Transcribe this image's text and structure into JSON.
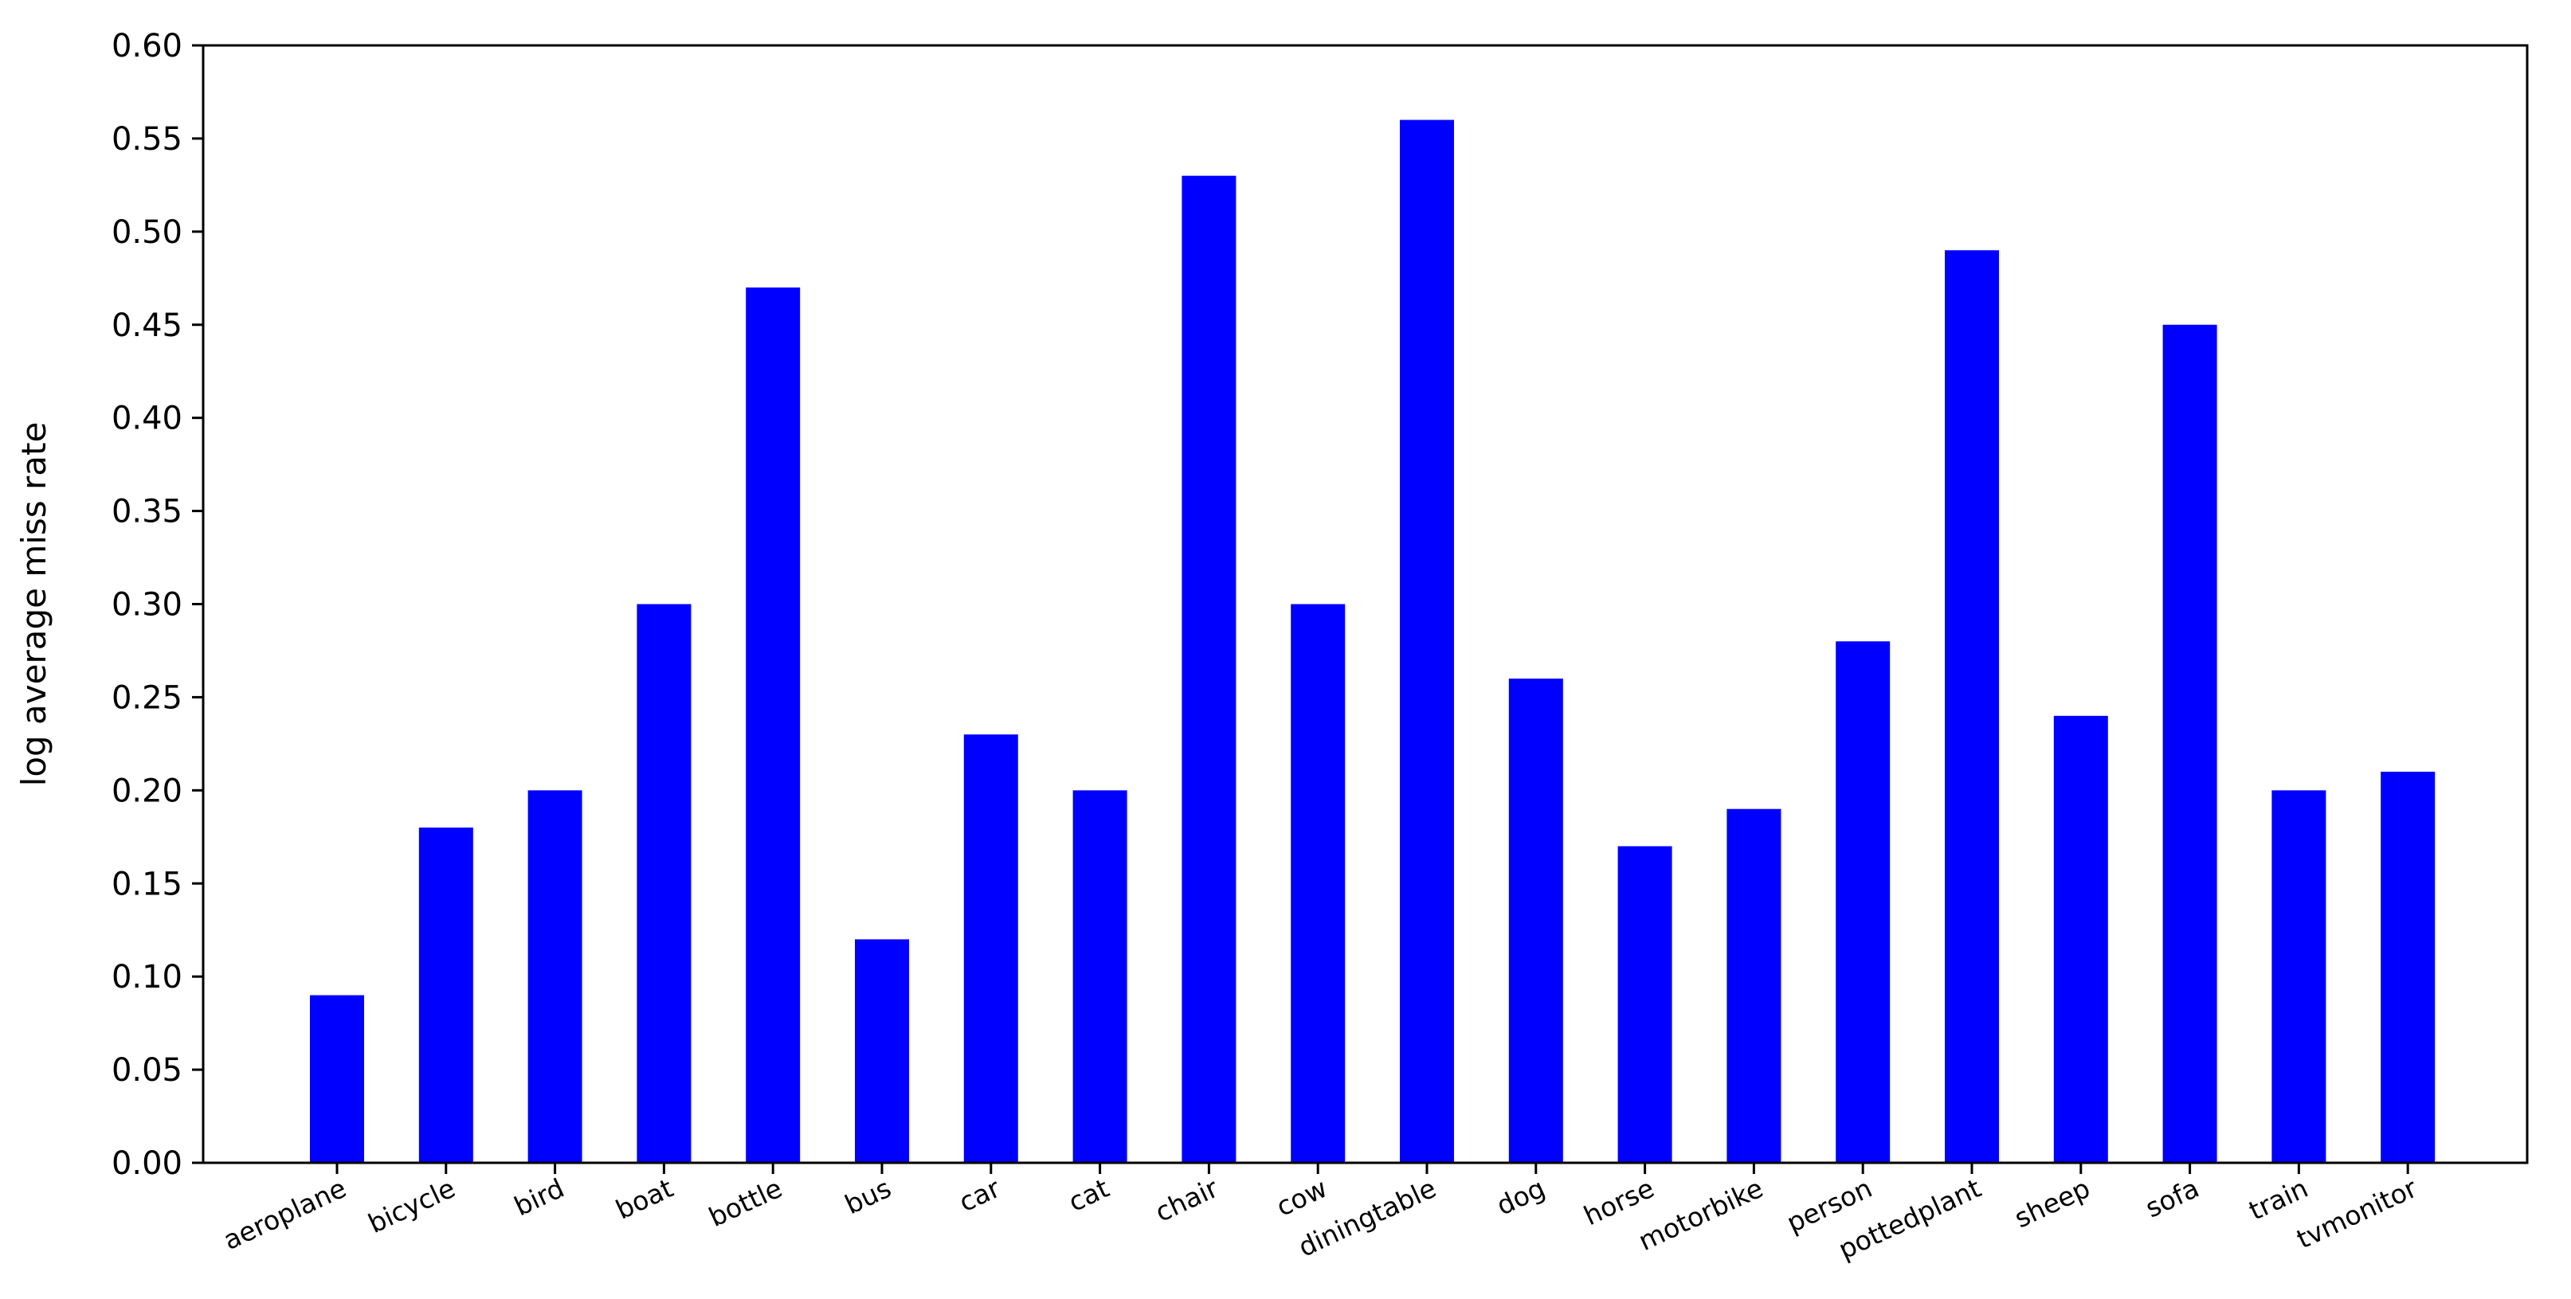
{
  "chart_data": {
    "type": "bar",
    "title": "",
    "xlabel": "",
    "ylabel": "log average miss rate",
    "categories": [
      "aeroplane",
      "bicycle",
      "bird",
      "boat",
      "bottle",
      "bus",
      "car",
      "cat",
      "chair",
      "cow",
      "diningtable",
      "dog",
      "horse",
      "motorbike",
      "person",
      "pottedplant",
      "sheep",
      "sofa",
      "train",
      "tvmonitor"
    ],
    "values": [
      0.09,
      0.18,
      0.2,
      0.3,
      0.47,
      0.12,
      0.23,
      0.2,
      0.53,
      0.3,
      0.56,
      0.26,
      0.17,
      0.19,
      0.28,
      0.49,
      0.24,
      0.45,
      0.2,
      0.21
    ],
    "ylim": [
      0.0,
      0.6
    ],
    "yticks": [
      "0.00",
      "0.05",
      "0.10",
      "0.15",
      "0.20",
      "0.25",
      "0.30",
      "0.35",
      "0.40",
      "0.45",
      "0.50",
      "0.55",
      "0.60"
    ],
    "bar_color": "#0000ff",
    "grid": false,
    "legend": "none",
    "x_tick_rotation": "rotated ~25 degrees"
  }
}
